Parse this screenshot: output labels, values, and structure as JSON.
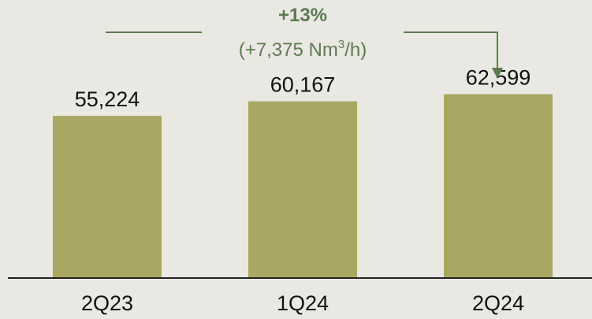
{
  "colors": {
    "background": "#e9e8e2",
    "bar": "#a9a862",
    "annotation": "#5e7a52",
    "axis": "#222222",
    "text": "#111111"
  },
  "chart_data": {
    "type": "bar",
    "categories": [
      "2Q23",
      "1Q24",
      "2Q24"
    ],
    "values": [
      55224,
      60167,
      62599
    ],
    "value_labels": [
      "55,224",
      "60,167",
      "62,599"
    ],
    "ylim": [
      0,
      70000
    ],
    "grid": false,
    "legend": "none",
    "annotation": {
      "main": "+13%",
      "sub_prefix": "(+7,375 Nm",
      "sub_sup": "3",
      "sub_suffix": "/h)",
      "from_category": "2Q23",
      "to_category": "2Q24"
    }
  }
}
